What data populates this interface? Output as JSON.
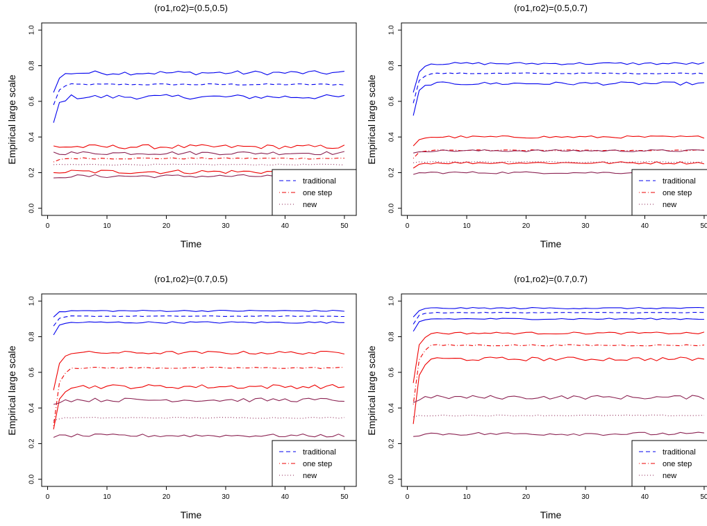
{
  "figure": {
    "legend": {
      "placement": "bottom-right",
      "entries": [
        {
          "label": "traditional",
          "color": "#0000EE",
          "dash": "dashed"
        },
        {
          "label": "one step",
          "color": "#EE0000",
          "dash": "dotdash"
        },
        {
          "label": "new",
          "color": "#8B2252",
          "dash": "dotted"
        }
      ]
    },
    "colors": {
      "traditional": "#0000EE",
      "one_step": "#EE0000",
      "new": "#8B2252"
    }
  },
  "chart_data": [
    {
      "type": "line",
      "title": "(ro1,ro2)=(0.5,0.5)",
      "xlabel": "Time",
      "ylabel": "Empirical large scale",
      "xlim": [
        1,
        50
      ],
      "ylim": [
        0,
        1
      ],
      "xticks": [
        "0",
        "10",
        "20",
        "30",
        "40",
        "50"
      ],
      "yticks": [
        "0.0",
        "0.2",
        "0.4",
        "0.6",
        "0.8",
        "1.0"
      ],
      "grid": false,
      "series": [
        {
          "group": "traditional",
          "dash": "dashed",
          "start": 0.58,
          "level": 0.695,
          "noise": 0.004
        },
        {
          "group": "traditional",
          "dash": "solid",
          "start": 0.65,
          "level": 0.76,
          "noise": 0.012
        },
        {
          "group": "traditional",
          "dash": "solid",
          "start": 0.48,
          "level": 0.625,
          "noise": 0.013
        },
        {
          "group": "one_step",
          "dash": "dotdash",
          "start": 0.26,
          "level": 0.28,
          "noise": 0.004
        },
        {
          "group": "one_step",
          "dash": "solid",
          "start": 0.35,
          "level": 0.345,
          "noise": 0.012
        },
        {
          "group": "one_step",
          "dash": "solid",
          "start": 0.2,
          "level": 0.205,
          "noise": 0.012
        },
        {
          "group": "new",
          "dash": "dotted",
          "start": 0.245,
          "level": 0.245,
          "noise": 0.003
        },
        {
          "group": "new",
          "dash": "solid",
          "start": 0.315,
          "level": 0.31,
          "noise": 0.01
        },
        {
          "group": "new",
          "dash": "solid",
          "start": 0.17,
          "level": 0.18,
          "noise": 0.009
        }
      ]
    },
    {
      "type": "line",
      "title": "(ro1,ro2)=(0.5,0.7)",
      "xlabel": "Time",
      "ylabel": "Empirical large scale",
      "xlim": [
        1,
        50
      ],
      "ylim": [
        0,
        1
      ],
      "xticks": [
        "0",
        "10",
        "20",
        "30",
        "40",
        "50"
      ],
      "yticks": [
        "0.0",
        "0.2",
        "0.4",
        "0.6",
        "0.8",
        "1.0"
      ],
      "grid": false,
      "series": [
        {
          "group": "traditional",
          "dash": "dashed",
          "start": 0.59,
          "level": 0.757,
          "noise": 0.003
        },
        {
          "group": "traditional",
          "dash": "solid",
          "start": 0.65,
          "level": 0.812,
          "noise": 0.007
        },
        {
          "group": "traditional",
          "dash": "solid",
          "start": 0.52,
          "level": 0.7,
          "noise": 0.009
        },
        {
          "group": "one_step",
          "dash": "dotdash",
          "start": 0.28,
          "level": 0.325,
          "noise": 0.003
        },
        {
          "group": "one_step",
          "dash": "solid",
          "start": 0.35,
          "level": 0.4,
          "noise": 0.007
        },
        {
          "group": "one_step",
          "dash": "solid",
          "start": 0.225,
          "level": 0.255,
          "noise": 0.007
        },
        {
          "group": "new",
          "dash": "dotted",
          "start": 0.255,
          "level": 0.26,
          "noise": 0.003
        },
        {
          "group": "new",
          "dash": "solid",
          "start": 0.31,
          "level": 0.323,
          "noise": 0.006
        },
        {
          "group": "new",
          "dash": "solid",
          "start": 0.19,
          "level": 0.2,
          "noise": 0.006
        }
      ]
    },
    {
      "type": "line",
      "title": "(ro1,ro2)=(0.7,0.5)",
      "xlabel": "Time",
      "ylabel": "Empirical large scale",
      "xlim": [
        1,
        50
      ],
      "ylim": [
        0,
        1
      ],
      "xticks": [
        "0",
        "10",
        "20",
        "30",
        "40",
        "50"
      ],
      "yticks": [
        "0.0",
        "0.2",
        "0.4",
        "0.6",
        "0.8",
        "1.0"
      ],
      "grid": false,
      "series": [
        {
          "group": "traditional",
          "dash": "dashed",
          "start": 0.86,
          "level": 0.915,
          "noise": 0.002
        },
        {
          "group": "traditional",
          "dash": "solid",
          "start": 0.91,
          "level": 0.945,
          "noise": 0.004
        },
        {
          "group": "traditional",
          "dash": "solid",
          "start": 0.81,
          "level": 0.88,
          "noise": 0.005
        },
        {
          "group": "one_step",
          "dash": "dotdash",
          "start": 0.3,
          "level": 0.625,
          "noise": 0.004
        },
        {
          "group": "one_step",
          "dash": "solid",
          "start": 0.5,
          "level": 0.71,
          "noise": 0.009
        },
        {
          "group": "one_step",
          "dash": "solid",
          "start": 0.28,
          "level": 0.52,
          "noise": 0.012
        },
        {
          "group": "new",
          "dash": "dotted",
          "start": 0.33,
          "level": 0.345,
          "noise": 0.003
        },
        {
          "group": "new",
          "dash": "solid",
          "start": 0.42,
          "level": 0.445,
          "noise": 0.011
        },
        {
          "group": "new",
          "dash": "solid",
          "start": 0.235,
          "level": 0.245,
          "noise": 0.009
        }
      ]
    },
    {
      "type": "line",
      "title": "(ro1,ro2)=(0.7,0.7)",
      "xlabel": "Time",
      "ylabel": "Empirical large scale",
      "xlim": [
        1,
        50
      ],
      "ylim": [
        0,
        1
      ],
      "xticks": [
        "0",
        "10",
        "20",
        "30",
        "40",
        "50"
      ],
      "yticks": [
        "0.0",
        "0.2",
        "0.4",
        "0.6",
        "0.8",
        "1.0"
      ],
      "grid": false,
      "series": [
        {
          "group": "traditional",
          "dash": "dashed",
          "start": 0.87,
          "level": 0.935,
          "noise": 0.002
        },
        {
          "group": "traditional",
          "dash": "solid",
          "start": 0.91,
          "level": 0.96,
          "noise": 0.004
        },
        {
          "group": "traditional",
          "dash": "solid",
          "start": 0.83,
          "level": 0.9,
          "noise": 0.004
        },
        {
          "group": "one_step",
          "dash": "dotdash",
          "start": 0.42,
          "level": 0.752,
          "noise": 0.004
        },
        {
          "group": "one_step",
          "dash": "solid",
          "start": 0.54,
          "level": 0.82,
          "noise": 0.006
        },
        {
          "group": "one_step",
          "dash": "solid",
          "start": 0.31,
          "level": 0.675,
          "noise": 0.011
        },
        {
          "group": "new",
          "dash": "dotted",
          "start": 0.35,
          "level": 0.358,
          "noise": 0.003
        },
        {
          "group": "new",
          "dash": "solid",
          "start": 0.43,
          "level": 0.46,
          "noise": 0.011
        },
        {
          "group": "new",
          "dash": "solid",
          "start": 0.24,
          "level": 0.255,
          "noise": 0.009
        }
      ]
    }
  ]
}
